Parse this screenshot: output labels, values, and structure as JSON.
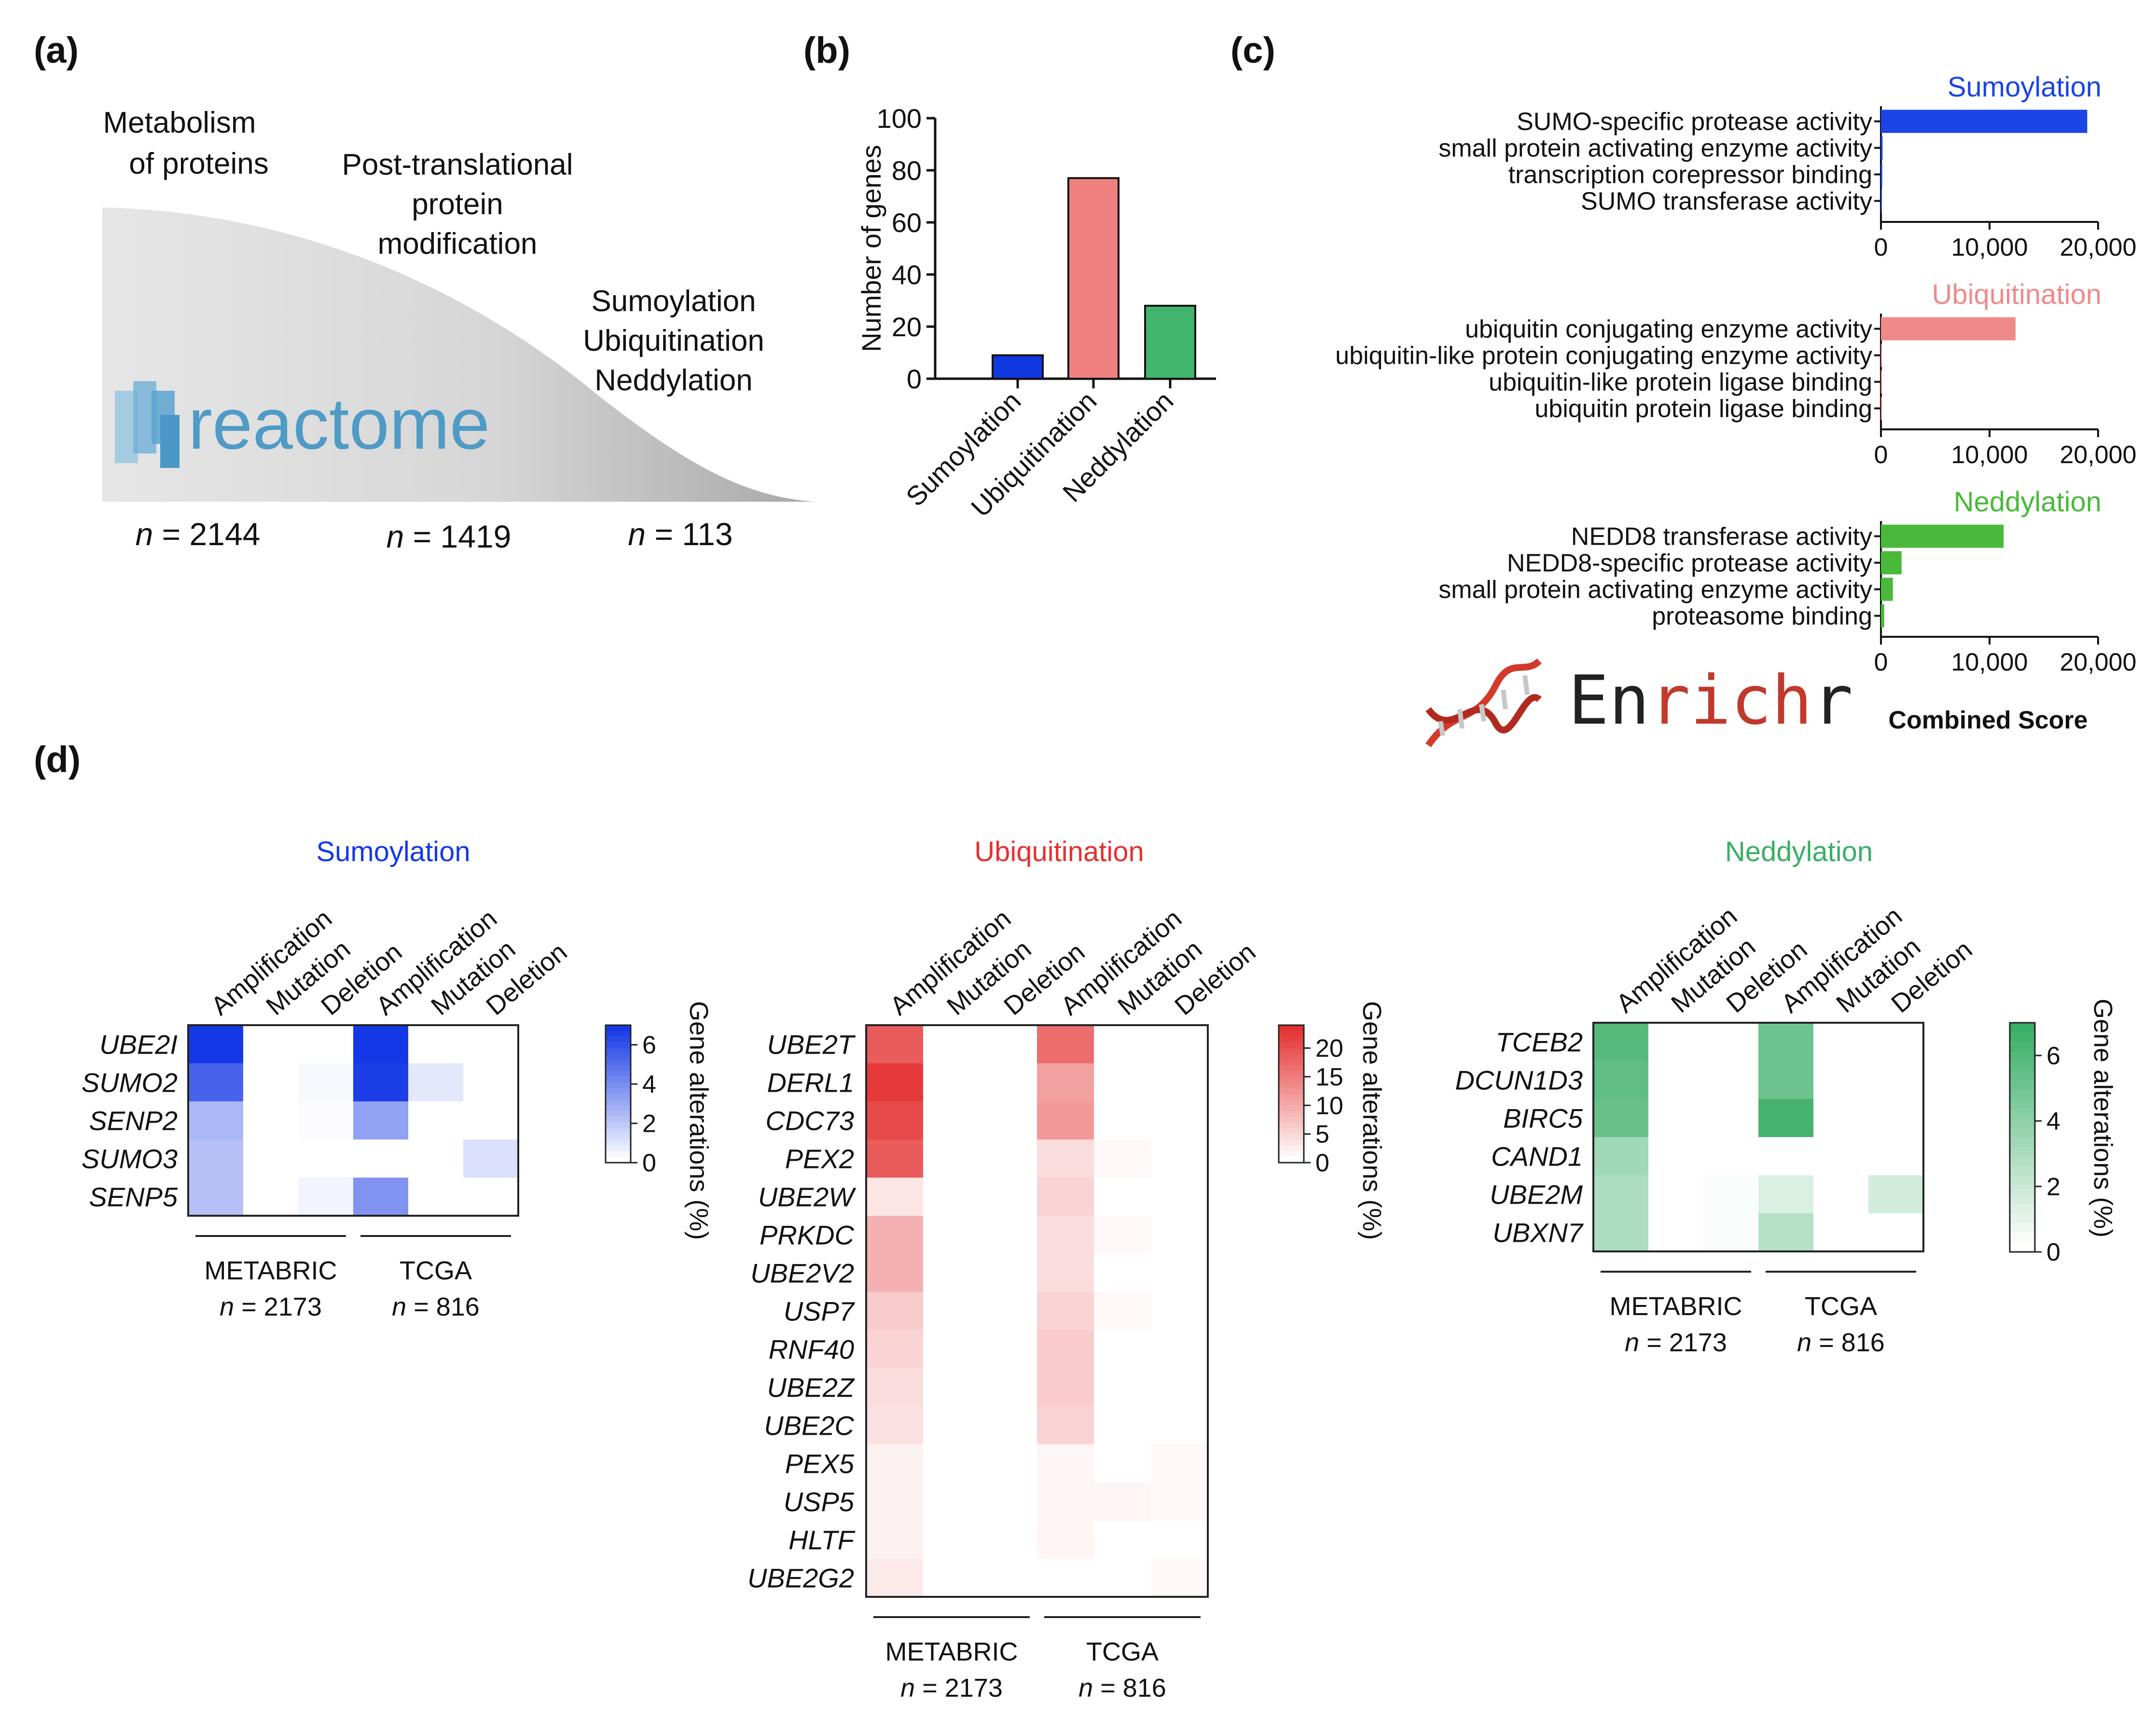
{
  "colors": {
    "sumo": "#1038e0",
    "ubi": "#f08080",
    "nedd": "#41b56e",
    "ubiTitle": "#f28a8a",
    "neddTitle": "#43b873",
    "enrichBlue": "#1b44e6",
    "enrichPink": "#f08a8a",
    "enrichGreen": "#4ab83a",
    "heatBlue": "#1538e6",
    "heatRed": "#e53030",
    "heatGreen": "#3aae66"
  },
  "panel_a": {
    "label": "(a)",
    "stage1": [
      "Metabolism",
      "of proteins"
    ],
    "stage2": [
      "Post-translational",
      "protein",
      "modification"
    ],
    "stage3": [
      "Sumoylation",
      "Ubiquitination",
      "Neddylation"
    ],
    "logo_text": "reactome",
    "logo_icon": "reactome-logo-icon",
    "counts": [
      {
        "n": "n",
        "value": " = 2144"
      },
      {
        "n": "n",
        "value": " = 1419"
      },
      {
        "n": "n",
        "value": " = 113"
      }
    ]
  },
  "chart_data": [
    {
      "id": "b",
      "type": "bar",
      "panel_label": "(b)",
      "categories": [
        "Sumoylation",
        "Ubiquitination",
        "Neddylation"
      ],
      "values": [
        9,
        77,
        28
      ],
      "ylabel": "Number of genes",
      "ylim": [
        0,
        100
      ],
      "yticks": [
        "0",
        "20",
        "40",
        "60",
        "80",
        "100"
      ]
    },
    {
      "id": "c",
      "type": "bar",
      "orientation": "horizontal",
      "panel_label": "(c)",
      "xlabel": "Combined Score",
      "xlim": [
        0,
        20000
      ],
      "xticks": [
        "0",
        "10,000",
        "20,000"
      ],
      "enrichr_logo": {
        "en": "En",
        "rich": "rich",
        "r": "r",
        "icon": "dna-helix-icon"
      },
      "subplots": [
        {
          "title": "Sumoylation",
          "color": "#1b44e6",
          "categories": [
            "SUMO-specific protease activity",
            "small protein activating enzyme activity",
            "transcription corepressor binding",
            "SUMO transferase activity"
          ],
          "values": [
            19000,
            150,
            120,
            80
          ]
        },
        {
          "title": "Ubiquitination",
          "color": "#f08a8a",
          "categories": [
            "ubiquitin conjugating enzyme activity",
            "ubiquitin-like protein conjugating enzyme activity",
            "ubiquitin-like protein ligase binding",
            "ubiquitin protein ligase binding"
          ],
          "values": [
            12400,
            60,
            40,
            30
          ]
        },
        {
          "title": "Neddylation",
          "color": "#4ab83a",
          "categories": [
            "NEDD8 transferase activity",
            "NEDD8-specific protease activity",
            "small protein activating enzyme activity",
            "proteasome binding"
          ],
          "values": [
            11300,
            1900,
            1100,
            300
          ]
        }
      ]
    },
    {
      "id": "d",
      "type": "heatmap",
      "panel_label": "(d)",
      "columns": [
        "Amplification",
        "Mutation",
        "Deletion",
        "Amplification",
        "Mutation",
        "Deletion"
      ],
      "groups": [
        {
          "name": "METABRIC",
          "n": "n",
          "value": " = 2173"
        },
        {
          "name": "TCGA",
          "n": "n",
          "value": " = 816"
        }
      ],
      "colorbar_label": "Gene alterations (%)",
      "maps": [
        {
          "title": "Sumoylation",
          "color": "#1538e6",
          "max": 7,
          "cbar_ticks": [
            0,
            2,
            4,
            6
          ],
          "genes": [
            "UBE2I",
            "SUMO2",
            "SENP2",
            "SUMO3",
            "SENP5"
          ],
          "values": [
            [
              7.0,
              0,
              0,
              7.0,
              0,
              0
            ],
            [
              5.5,
              0,
              0.2,
              6.8,
              0.8,
              0
            ],
            [
              2.5,
              0,
              0.1,
              3.3,
              0,
              0
            ],
            [
              2.2,
              0,
              0,
              0,
              0,
              1.1
            ],
            [
              2.2,
              0,
              0.4,
              3.8,
              0,
              0
            ]
          ]
        },
        {
          "title": "Ubiquitination",
          "color": "#e53030",
          "max": 24,
          "cbar_ticks": [
            0,
            5,
            10,
            15,
            20
          ],
          "genes": [
            "UBE2T",
            "DERL1",
            "CDC73",
            "PEX2",
            "UBE2W",
            "PRKDC",
            "UBE2V2",
            "USP7",
            "RNF40",
            "UBE2Z",
            "UBE2C",
            "PEX5",
            "USP5",
            "HLTF",
            "UBE2G2"
          ],
          "values": [
            [
              19,
              0,
              0,
              17,
              0,
              0
            ],
            [
              23,
              0,
              0,
              11,
              0,
              0
            ],
            [
              21,
              0,
              0,
              12,
              0,
              0
            ],
            [
              19,
              0,
              0,
              4,
              0.8,
              0
            ],
            [
              3,
              0,
              0,
              5,
              0,
              0
            ],
            [
              9,
              0,
              0,
              4,
              0.8,
              0
            ],
            [
              9,
              0,
              0,
              4,
              0,
              0
            ],
            [
              6,
              0,
              0,
              5,
              0.8,
              0
            ],
            [
              5,
              0,
              0,
              6,
              0,
              0
            ],
            [
              4,
              0,
              0,
              6,
              0,
              0
            ],
            [
              3.5,
              0,
              0,
              5,
              0,
              0
            ],
            [
              1.5,
              0,
              0,
              1,
              0,
              0.8
            ],
            [
              1.5,
              0,
              0,
              1,
              1,
              0.8
            ],
            [
              1.5,
              0,
              0,
              1.2,
              0,
              0
            ],
            [
              2.5,
              0,
              0,
              0,
              0,
              0.8
            ]
          ]
        },
        {
          "title": "Neddylation",
          "color": "#3aae66",
          "max": 7,
          "cbar_ticks": [
            0,
            2,
            4,
            6
          ],
          "genes": [
            "TCEB2",
            "DCUN1D3",
            "BIRC5",
            "CAND1",
            "UBE2M",
            "UBXN7"
          ],
          "values": [
            [
              6.0,
              0,
              0,
              5.2,
              0,
              0
            ],
            [
              5.6,
              0,
              0,
              5.2,
              0,
              0
            ],
            [
              5.4,
              0,
              0,
              6.6,
              0,
              0
            ],
            [
              3.4,
              0,
              0,
              0,
              0,
              0
            ],
            [
              2.9,
              0,
              0.2,
              1.3,
              0,
              1.6
            ],
            [
              2.9,
              0,
              0.2,
              2.6,
              0,
              0
            ]
          ]
        }
      ]
    }
  ]
}
